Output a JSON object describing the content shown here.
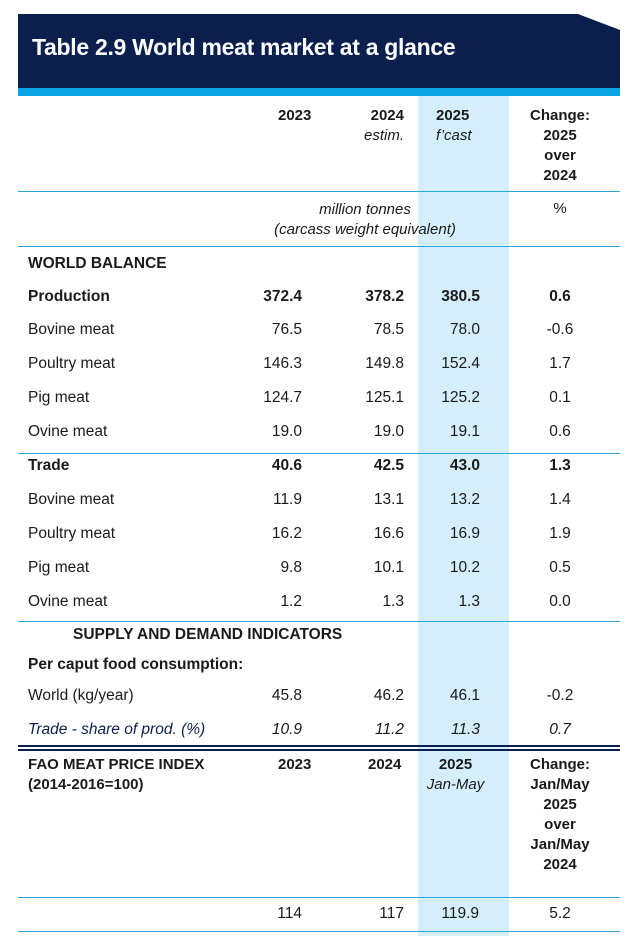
{
  "title": "Table 2.9 World meat market at a glance",
  "header": {
    "y2023": "2023",
    "y2024": "2024",
    "y2024_sub": "estim.",
    "y2025": "2025",
    "y2025_sub": "f’cast",
    "change": [
      "Change:",
      "2025",
      "over",
      "2024"
    ]
  },
  "units": {
    "main": "million tonnes",
    "main2": "(carcass weight equivalent)",
    "pct": "%"
  },
  "sections": {
    "world_balance": "WORLD BALANCE",
    "supply_demand": "SUPPLY AND DEMAND INDICATORS",
    "per_caput": "Per caput food consumption:"
  },
  "rows": [
    {
      "label": "Production",
      "v": [
        "372.4",
        "378.2",
        "380.5",
        "0.6"
      ]
    },
    {
      "label": "Bovine meat",
      "v": [
        "76.5",
        "78.5",
        "78.0",
        "-0.6"
      ]
    },
    {
      "label": "Poultry meat",
      "v": [
        "146.3",
        "149.8",
        "152.4",
        "1.7"
      ]
    },
    {
      "label": "Pig meat",
      "v": [
        "124.7",
        "125.1",
        "125.2",
        "0.1"
      ]
    },
    {
      "label": "Ovine meat",
      "v": [
        "19.0",
        "19.0",
        "19.1",
        "0.6"
      ]
    },
    {
      "label": "Trade",
      "v": [
        "40.6",
        "42.5",
        "43.0",
        "1.3"
      ]
    },
    {
      "label": "Bovine meat",
      "v": [
        "11.9",
        "13.1",
        "13.2",
        "1.4"
      ]
    },
    {
      "label": "Poultry meat",
      "v": [
        "16.2",
        "16.6",
        "16.9",
        "1.9"
      ]
    },
    {
      "label": "Pig meat",
      "v": [
        "9.8",
        "10.1",
        "10.2",
        "0.5"
      ]
    },
    {
      "label": "Ovine meat",
      "v": [
        "1.2",
        "1.3",
        "1.3",
        "0.0"
      ]
    },
    {
      "label": "World (kg/year)",
      "v": [
        "45.8",
        "46.2",
        "46.1",
        "-0.2"
      ]
    },
    {
      "label": "Trade - share of prod. (%)",
      "v": [
        "10.9",
        "11.2",
        "11.3",
        "0.7"
      ]
    }
  ],
  "fao": {
    "label1": "FAO MEAT PRICE INDEX",
    "label2": "(2014-2016=100)",
    "y2023": "2023",
    "y2024": "2024",
    "y2025": "2025",
    "y2025_sub": "Jan-May",
    "change": [
      "Change:",
      "Jan/May",
      "2025",
      "over",
      "Jan/May",
      "2024"
    ],
    "v": [
      "114",
      "117",
      "119.9",
      "5.2"
    ]
  }
}
